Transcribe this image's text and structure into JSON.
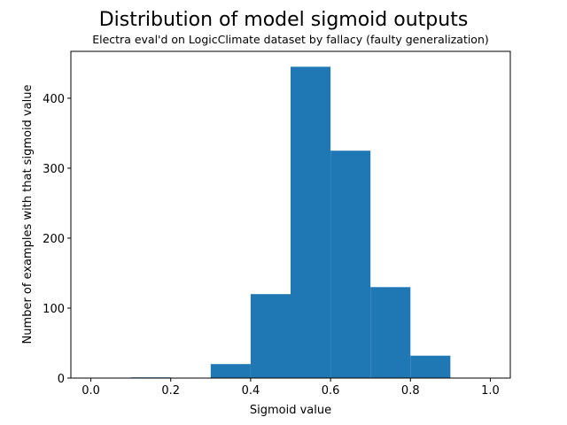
{
  "chart_data": {
    "type": "bar",
    "title": "Distribution of model sigmoid outputs",
    "subtitle": "Electra eval'd on LogicClimate dataset by fallacy (faulty generalization)",
    "xlabel": "Sigmoid value",
    "ylabel": "Number of examples with that sigmoid value",
    "bin_edges": [
      0.0,
      0.1,
      0.2,
      0.3,
      0.4,
      0.5,
      0.6,
      0.7,
      0.8,
      0.9,
      1.0
    ],
    "values": [
      0,
      1,
      0,
      20,
      120,
      445,
      325,
      130,
      32,
      0
    ],
    "xlim": [
      -0.05,
      1.05
    ],
    "ylim": [
      0,
      467
    ],
    "xticks": [
      0.0,
      0.2,
      0.4,
      0.6,
      0.8,
      1.0
    ],
    "xtick_labels": [
      "0.0",
      "0.2",
      "0.4",
      "0.6",
      "0.8",
      "1.0"
    ],
    "yticks": [
      0,
      100,
      200,
      300,
      400
    ],
    "ytick_labels": [
      "0",
      "100",
      "200",
      "300",
      "400"
    ],
    "bar_color": "#1f77b4",
    "grid": false,
    "legend": "none"
  }
}
